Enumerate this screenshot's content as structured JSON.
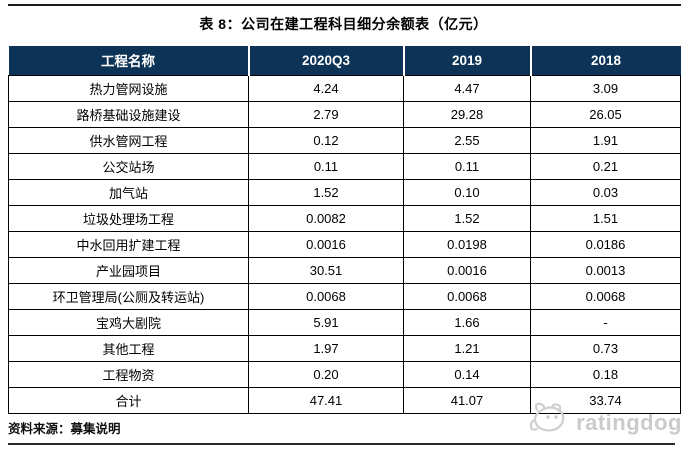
{
  "page": {
    "title": "表 8：公司在建工程科目细分余额表（亿元）"
  },
  "table": {
    "columns": [
      "工程名称",
      "2020Q3",
      "2019",
      "2018"
    ],
    "rows": [
      {
        "name": "热力管网设施",
        "values": [
          "4.24",
          "4.47",
          "3.09"
        ]
      },
      {
        "name": "路桥基础设施建设",
        "values": [
          "2.79",
          "29.28",
          "26.05"
        ]
      },
      {
        "name": "供水管网工程",
        "values": [
          "0.12",
          "2.55",
          "1.91"
        ]
      },
      {
        "name": "公交站场",
        "values": [
          "0.11",
          "0.11",
          "0.21"
        ]
      },
      {
        "name": "加气站",
        "values": [
          "1.52",
          "0.10",
          "0.03"
        ]
      },
      {
        "name": "垃圾处理场工程",
        "values": [
          "0.0082",
          "1.52",
          "1.51"
        ]
      },
      {
        "name": "中水回用扩建工程",
        "values": [
          "0.0016",
          "0.0198",
          "0.0186"
        ]
      },
      {
        "name": "产业园项目",
        "values": [
          "30.51",
          "0.0016",
          "0.0013"
        ]
      },
      {
        "name": "环卫管理局(公厕及转运站)",
        "values": [
          "0.0068",
          "0.0068",
          "0.0068"
        ]
      },
      {
        "name": "宝鸡大剧院",
        "values": [
          "5.91",
          "1.66",
          "-"
        ]
      },
      {
        "name": "其他工程",
        "values": [
          "1.97",
          "1.21",
          "0.73"
        ]
      },
      {
        "name": "工程物资",
        "values": [
          "0.20",
          "0.14",
          "0.18"
        ]
      },
      {
        "name": "合计",
        "values": [
          "47.41",
          "41.07",
          "33.74"
        ]
      }
    ]
  },
  "footer": {
    "source": "资料来源：募集说明",
    "brand": "ratingdog"
  },
  "colors": {
    "header_bg": "#0d3456",
    "header_text": "#ffffff",
    "table_border": "#000000",
    "rule_color": "#1a1a1a",
    "brand_gray": "#cbcbcb"
  }
}
